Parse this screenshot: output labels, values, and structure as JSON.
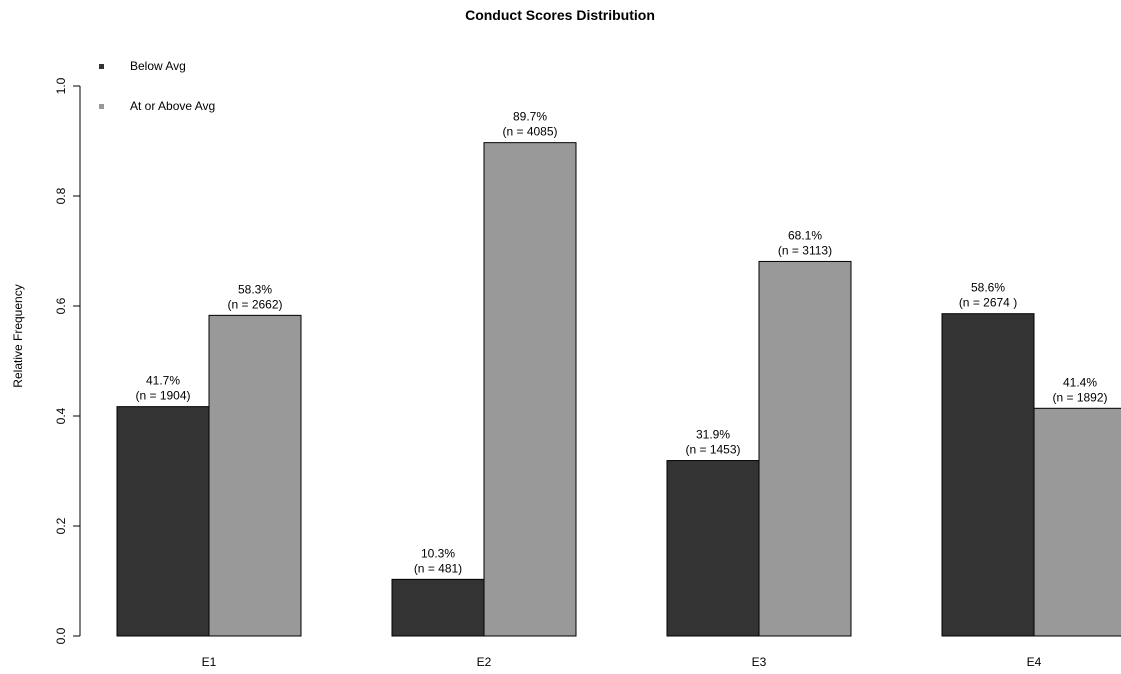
{
  "chart_data": {
    "type": "bar",
    "title": "Conduct Scores Distribution",
    "xlabel": "",
    "ylabel": "Relative Frequency",
    "ylim": [
      0,
      1.0
    ],
    "yticks": [
      "0.0",
      "0.2",
      "0.4",
      "0.6",
      "0.8",
      "1.0"
    ],
    "categories": [
      "E1",
      "E2",
      "E3",
      "E4"
    ],
    "legend_position": "top-left",
    "grid": false,
    "series": [
      {
        "name": "Below Avg",
        "color": "#333333",
        "values": [
          0.417,
          0.103,
          0.319,
          0.586
        ],
        "labels": [
          {
            "pct": "41.7%",
            "n": "(n = 1904)"
          },
          {
            "pct": "10.3%",
            "n": "(n = 481)"
          },
          {
            "pct": "31.9%",
            "n": "(n = 1453)"
          },
          {
            "pct": "58.6%",
            "n": "(n = 2674 )"
          }
        ]
      },
      {
        "name": "At or Above Avg",
        "color": "#999999",
        "values": [
          0.583,
          0.897,
          0.681,
          0.414
        ],
        "labels": [
          {
            "pct": "58.3%",
            "n": "(n = 2662)"
          },
          {
            "pct": "89.7%",
            "n": "(n = 4085)"
          },
          {
            "pct": "68.1%",
            "n": "(n = 3113)"
          },
          {
            "pct": "41.4%",
            "n": "(n = 1892)"
          }
        ]
      }
    ]
  }
}
